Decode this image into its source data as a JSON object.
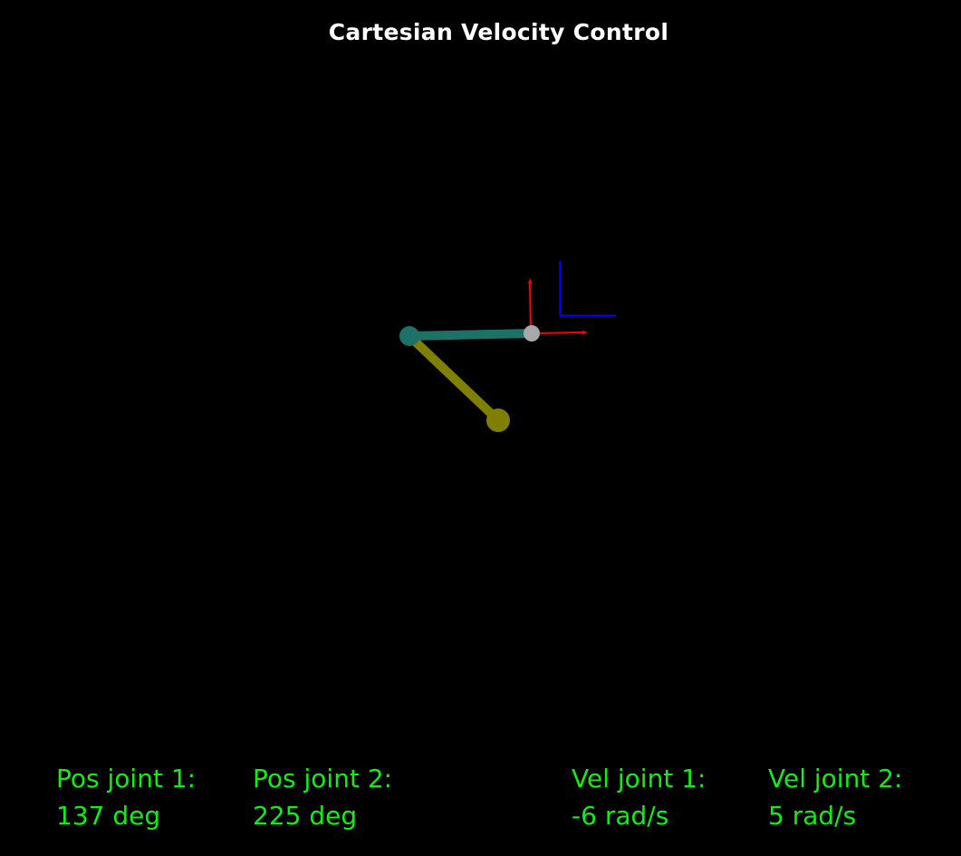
{
  "title": "Cartesian Velocity Control",
  "robot": {
    "link1_color": "#1c7267",
    "link2_color": "#808000",
    "base_joint_color": "#1c7267",
    "end_effector_color": "#808000",
    "mount_point_color": "#a8a8a8",
    "frame_x_color": "#ff0000",
    "frame_y_color": "#ff0000",
    "reference_frame_color": "#0000ff"
  },
  "readouts": [
    {
      "label": "Pos joint 1:",
      "value": "137 deg"
    },
    {
      "label": "Pos joint 2:",
      "value": "225 deg"
    },
    {
      "label": "Vel joint 1:",
      "value": "-6 rad/s"
    },
    {
      "label": "Vel joint 2:",
      "value": "5 rad/s"
    }
  ],
  "text_color": "#11ee11"
}
